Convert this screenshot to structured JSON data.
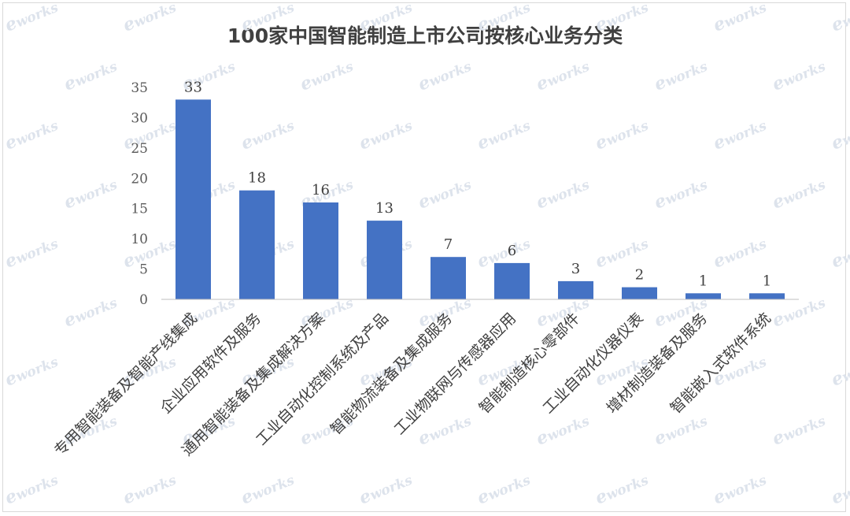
{
  "watermark": "works",
  "watermark_initial": "e",
  "chart_data": {
    "type": "bar",
    "title": "100家中国智能制造上市公司按核心业务分类",
    "categories": [
      "专用智能装备及智能产线集成",
      "企业应用软件及服务",
      "通用智能装备及集成解决方案",
      "工业自动化控制系统及产品",
      "智能物流装备及集成服务",
      "工业物联网与传感器应用",
      "智能制造核心零部件",
      "工业自动化仪器仪表",
      "增材制造装备及服务",
      "智能嵌入式软件系统"
    ],
    "values": [
      33,
      18,
      16,
      13,
      7,
      6,
      3,
      2,
      1,
      1
    ],
    "ylim": [
      0,
      35
    ],
    "yticks": [
      0,
      5,
      10,
      15,
      20,
      25,
      30,
      35
    ],
    "xlabel": "",
    "ylabel": "",
    "grid": false,
    "bar_color": "#4472c4"
  }
}
